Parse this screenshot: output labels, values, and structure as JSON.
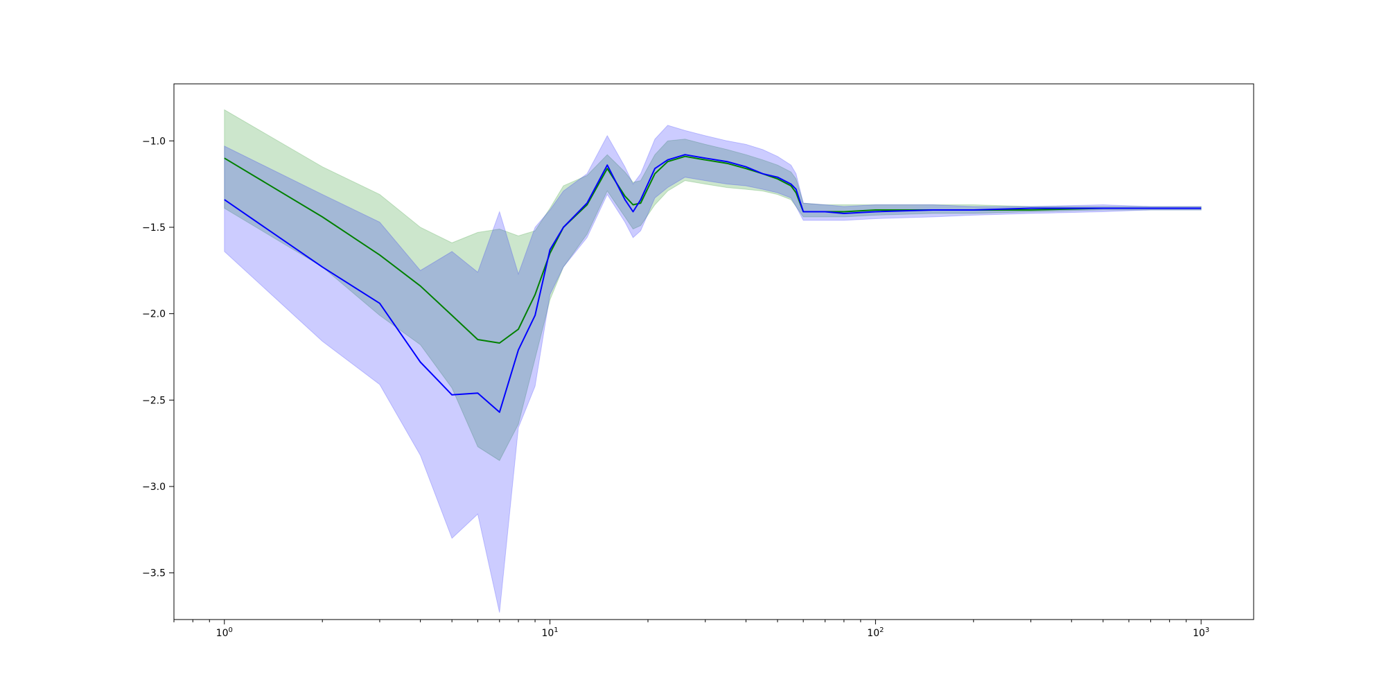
{
  "chart_data": {
    "type": "line",
    "title": "",
    "xlabel": "",
    "ylabel": "",
    "xscale": "log",
    "xlim": [
      0.7,
      1450
    ],
    "ylim": [
      -3.77,
      -0.67
    ],
    "grid": false,
    "x_ticks": [
      {
        "value": 1,
        "base": "10",
        "exp": "0"
      },
      {
        "value": 10,
        "base": "10",
        "exp": "1"
      },
      {
        "value": 100,
        "base": "10",
        "exp": "2"
      },
      {
        "value": 1000,
        "base": "10",
        "exp": "3"
      }
    ],
    "y_ticks": [
      {
        "value": -1.0,
        "label": "−1.0"
      },
      {
        "value": -1.5,
        "label": "−1.5"
      },
      {
        "value": -2.0,
        "label": "−2.0"
      },
      {
        "value": -2.5,
        "label": "−2.5"
      },
      {
        "value": -3.0,
        "label": "−3.0"
      },
      {
        "value": -3.5,
        "label": "−3.5"
      }
    ],
    "series": [
      {
        "color": "#008000",
        "band_color": "#008000",
        "band_opacity": 0.2,
        "x": [
          1,
          2,
          3,
          4,
          5,
          6,
          7,
          8,
          9,
          10,
          11,
          13,
          15,
          17,
          18,
          19,
          21,
          23,
          26,
          30,
          35,
          40,
          45,
          50,
          55,
          57,
          60,
          70,
          80,
          100,
          150,
          200,
          300,
          500,
          700,
          1000
        ],
        "y": [
          -1.1,
          -1.44,
          -1.66,
          -1.84,
          -2.01,
          -2.15,
          -2.17,
          -2.09,
          -1.89,
          -1.65,
          -1.5,
          -1.37,
          -1.16,
          -1.32,
          -1.37,
          -1.36,
          -1.19,
          -1.12,
          -1.09,
          -1.11,
          -1.13,
          -1.16,
          -1.19,
          -1.22,
          -1.26,
          -1.3,
          -1.41,
          -1.41,
          -1.41,
          -1.4,
          -1.4,
          -1.4,
          -1.4,
          -1.39,
          -1.39,
          -1.39
        ],
        "upper": [
          -0.82,
          -1.15,
          -1.31,
          -1.5,
          -1.59,
          -1.53,
          -1.51,
          -1.55,
          -1.52,
          -1.39,
          -1.26,
          -1.2,
          -1.08,
          -1.18,
          -1.24,
          -1.23,
          -1.08,
          -1.0,
          -0.99,
          -1.02,
          -1.05,
          -1.08,
          -1.11,
          -1.14,
          -1.18,
          -1.22,
          -1.36,
          -1.37,
          -1.37,
          -1.37,
          -1.37,
          -1.37,
          -1.38,
          -1.38,
          -1.38,
          -1.38
        ],
        "lower": [
          -1.39,
          -1.73,
          -2.01,
          -2.18,
          -2.43,
          -2.77,
          -2.85,
          -2.64,
          -2.26,
          -1.92,
          -1.73,
          -1.54,
          -1.29,
          -1.44,
          -1.51,
          -1.49,
          -1.37,
          -1.29,
          -1.23,
          -1.25,
          -1.27,
          -1.28,
          -1.29,
          -1.31,
          -1.34,
          -1.38,
          -1.44,
          -1.44,
          -1.44,
          -1.43,
          -1.42,
          -1.42,
          -1.41,
          -1.4,
          -1.4,
          -1.4
        ]
      },
      {
        "color": "#0000ff",
        "band_color": "#0000ff",
        "band_opacity": 0.2,
        "x": [
          1,
          2,
          3,
          4,
          5,
          6,
          7,
          8,
          9,
          10,
          11,
          13,
          15,
          17,
          18,
          19,
          21,
          23,
          26,
          30,
          35,
          40,
          45,
          50,
          55,
          57,
          60,
          70,
          80,
          100,
          150,
          200,
          300,
          500,
          700,
          1000
        ],
        "y": [
          -1.34,
          -1.73,
          -1.94,
          -2.28,
          -2.47,
          -2.46,
          -2.57,
          -2.21,
          -2.01,
          -1.63,
          -1.5,
          -1.36,
          -1.14,
          -1.34,
          -1.41,
          -1.34,
          -1.16,
          -1.11,
          -1.08,
          -1.1,
          -1.12,
          -1.15,
          -1.19,
          -1.21,
          -1.25,
          -1.28,
          -1.41,
          -1.41,
          -1.42,
          -1.41,
          -1.4,
          -1.4,
          -1.39,
          -1.39,
          -1.39,
          -1.39
        ],
        "upper": [
          -1.03,
          -1.31,
          -1.47,
          -1.75,
          -1.64,
          -1.76,
          -1.41,
          -1.77,
          -1.5,
          -1.4,
          -1.29,
          -1.19,
          -0.97,
          -1.15,
          -1.25,
          -1.19,
          -0.99,
          -0.91,
          -0.94,
          -0.97,
          -1.0,
          -1.02,
          -1.05,
          -1.09,
          -1.14,
          -1.19,
          -1.36,
          -1.37,
          -1.38,
          -1.37,
          -1.37,
          -1.38,
          -1.38,
          -1.37,
          -1.38,
          -1.38
        ],
        "lower": [
          -1.64,
          -2.16,
          -2.41,
          -2.82,
          -3.3,
          -3.16,
          -3.73,
          -2.66,
          -2.42,
          -1.89,
          -1.73,
          -1.56,
          -1.31,
          -1.47,
          -1.56,
          -1.52,
          -1.33,
          -1.27,
          -1.21,
          -1.23,
          -1.25,
          -1.26,
          -1.28,
          -1.3,
          -1.33,
          -1.38,
          -1.46,
          -1.46,
          -1.46,
          -1.45,
          -1.44,
          -1.43,
          -1.42,
          -1.41,
          -1.4,
          -1.4
        ]
      }
    ]
  }
}
